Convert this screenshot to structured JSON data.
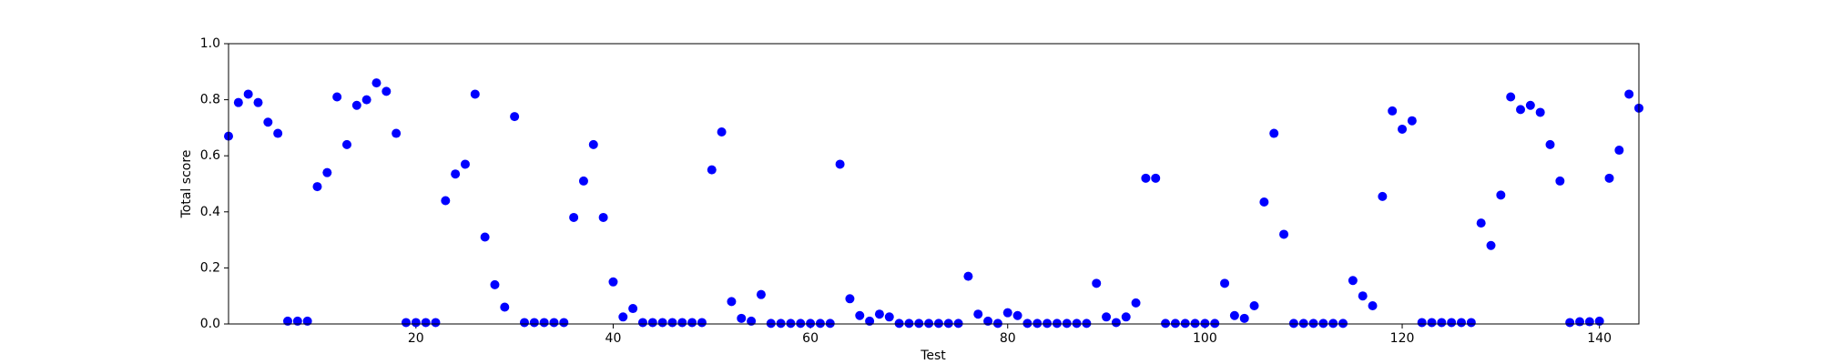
{
  "chart_data": {
    "type": "scatter",
    "xlabel": "Test",
    "ylabel": "Total score",
    "color": "#0000ff",
    "x": [
      1,
      2,
      3,
      4,
      5,
      6,
      7,
      8,
      9,
      10,
      11,
      12,
      13,
      14,
      15,
      16,
      17,
      18,
      19,
      20,
      21,
      22,
      23,
      24,
      25,
      26,
      27,
      28,
      29,
      30,
      31,
      32,
      33,
      34,
      35,
      36,
      37,
      38,
      39,
      40,
      41,
      42,
      43,
      44,
      45,
      46,
      47,
      48,
      49,
      50,
      51,
      52,
      53,
      54,
      55,
      56,
      57,
      58,
      59,
      60,
      61,
      62,
      63,
      64,
      65,
      66,
      67,
      68,
      69,
      70,
      71,
      72,
      73,
      74,
      75,
      76,
      77,
      78,
      79,
      80,
      81,
      82,
      83,
      84,
      85,
      86,
      87,
      88,
      89,
      90,
      91,
      92,
      93,
      94,
      95,
      96,
      97,
      98,
      99,
      100,
      101,
      102,
      103,
      104,
      105,
      106,
      107,
      108,
      109,
      110,
      111,
      112,
      113,
      114,
      115,
      116,
      117,
      118,
      119,
      120,
      121,
      122,
      123,
      124,
      125,
      126,
      127,
      128,
      129,
      130,
      131,
      132,
      133,
      134,
      135,
      136,
      137,
      138,
      139,
      140,
      141,
      142,
      143,
      144
    ],
    "values": [
      0.67,
      0.79,
      0.82,
      0.79,
      0.72,
      0.68,
      0.01,
      0.01,
      0.01,
      0.49,
      0.54,
      0.81,
      0.64,
      0.78,
      0.8,
      0.86,
      0.83,
      0.68,
      0.005,
      0.005,
      0.005,
      0.005,
      0.44,
      0.535,
      0.57,
      0.82,
      0.31,
      0.14,
      0.06,
      0.74,
      0.005,
      0.005,
      0.005,
      0.005,
      0.005,
      0.38,
      0.51,
      0.64,
      0.38,
      0.15,
      0.025,
      0.055,
      0.005,
      0.005,
      0.005,
      0.005,
      0.005,
      0.005,
      0.005,
      0.55,
      0.685,
      0.08,
      0.02,
      0.01,
      0.105,
      0.002,
      0.002,
      0.002,
      0.002,
      0.002,
      0.002,
      0.002,
      0.57,
      0.09,
      0.03,
      0.01,
      0.035,
      0.025,
      0.002,
      0.002,
      0.002,
      0.002,
      0.002,
      0.002,
      0.002,
      0.17,
      0.035,
      0.01,
      0.002,
      0.04,
      0.03,
      0.002,
      0.002,
      0.002,
      0.002,
      0.002,
      0.002,
      0.002,
      0.145,
      0.025,
      0.005,
      0.025,
      0.075,
      0.52,
      0.52,
      0.002,
      0.002,
      0.002,
      0.002,
      0.002,
      0.002,
      0.145,
      0.03,
      0.02,
      0.065,
      0.435,
      0.68,
      0.32,
      0.002,
      0.002,
      0.002,
      0.002,
      0.002,
      0.002,
      0.155,
      0.1,
      0.065,
      0.455,
      0.76,
      0.695,
      0.725,
      0.005,
      0.005,
      0.005,
      0.005,
      0.005,
      0.005,
      0.36,
      0.28,
      0.46,
      0.81,
      0.765,
      0.78,
      0.755,
      0.64,
      0.51,
      0.005,
      0.008,
      0.008,
      0.01,
      0.52,
      0.62,
      0.82,
      0.77
    ],
    "xlim": [
      1,
      144
    ],
    "xticks": [
      20,
      40,
      60,
      80,
      100,
      120,
      140
    ],
    "ylim": [
      0,
      1
    ],
    "yticks": [
      {
        "value": 0,
        "label": "0.0"
      },
      0.2,
      0.4,
      0.6,
      0.8,
      {
        "value": 1,
        "label": "1.0"
      }
    ]
  }
}
